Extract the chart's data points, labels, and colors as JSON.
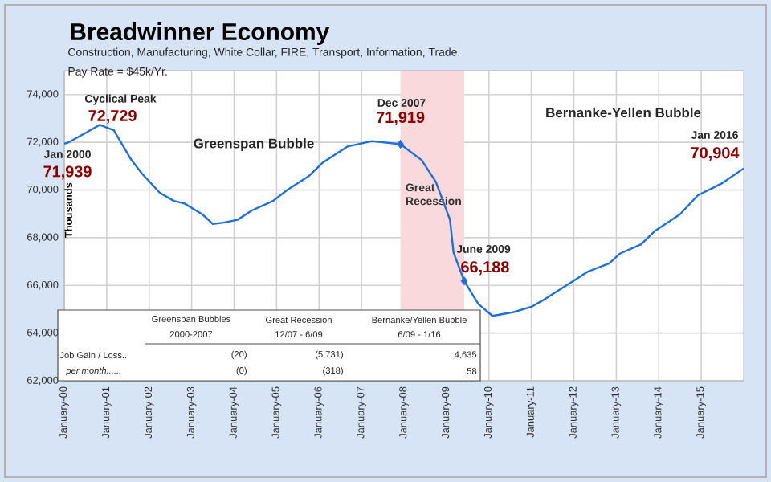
{
  "chart_data": {
    "type": "line",
    "title": "Breadwinner Economy",
    "subtitle": "Construction, Manufacturing, White Collar, FIRE, Transport, Information, Trade.",
    "ylabel": "Thousands",
    "xlim": [
      "2000-01",
      "2016-01"
    ],
    "ylim": [
      62000,
      75000
    ],
    "xticks": [
      {
        "value": "2000-01",
        "label": "January-00"
      },
      {
        "value": "2001-01",
        "label": "January-01"
      },
      {
        "value": "2002-01",
        "label": "January-02"
      },
      {
        "value": "2003-01",
        "label": "January-03"
      },
      {
        "value": "2004-01",
        "label": "January-04"
      },
      {
        "value": "2005-01",
        "label": "January-05"
      },
      {
        "value": "2006-01",
        "label": "January-06"
      },
      {
        "value": "2007-01",
        "label": "January-07"
      },
      {
        "value": "2008-01",
        "label": "January-08"
      },
      {
        "value": "2009-01",
        "label": "January-09"
      },
      {
        "value": "2010-01",
        "label": "January-10"
      },
      {
        "value": "2011-01",
        "label": "January-11"
      },
      {
        "value": "2012-01",
        "label": "January-12"
      },
      {
        "value": "2013-01",
        "label": "January-13"
      },
      {
        "value": "2014-01",
        "label": "January-14"
      },
      {
        "value": "2015-01",
        "label": "January-15"
      }
    ],
    "yticks": [
      {
        "value": 62000,
        "label": "62,000"
      },
      {
        "value": 64000,
        "label": "64,000"
      },
      {
        "value": 66000,
        "label": "66,000"
      },
      {
        "value": 68000,
        "label": "68,000"
      },
      {
        "value": 70000,
        "label": "70,000"
      },
      {
        "value": 72000,
        "label": "72,000"
      },
      {
        "value": 74000,
        "label": "74,000"
      }
    ],
    "grid": true,
    "series": [
      {
        "type": "line",
        "color": "#1f6fd6",
        "x": [
          "2000-01",
          "2000-02",
          "2000-07",
          "2000-11",
          "2001-03",
          "2001-08",
          "2001-11",
          "2002-04",
          "2002-08",
          "2002-11",
          "2003-04",
          "2003-07",
          "2003-10",
          "2004-02",
          "2004-06",
          "2004-12",
          "2005-04",
          "2005-10",
          "2006-02",
          "2006-09",
          "2007-04",
          "2007-12",
          "2008-06",
          "2008-10",
          "2009-02",
          "2009-03",
          "2009-06",
          "2009-10",
          "2010-02",
          "2010-08",
          "2011-01",
          "2011-05",
          "2011-11",
          "2012-05",
          "2012-11",
          "2013-02",
          "2013-08",
          "2013-12",
          "2014-07",
          "2014-12",
          "2015-07",
          "2016-01"
        ],
        "values": [
          71939,
          71980,
          72390,
          72729,
          72500,
          71250,
          70680,
          69880,
          69540,
          69430,
          68980,
          68570,
          68630,
          68750,
          69140,
          69540,
          70000,
          70570,
          71140,
          71820,
          72050,
          71919,
          71250,
          70340,
          68750,
          67380,
          66188,
          65220,
          64720,
          64880,
          65100,
          65440,
          66010,
          66580,
          66920,
          67330,
          67720,
          68290,
          68980,
          69770,
          70290,
          70904
        ]
      },
      {
        "type": "scatter",
        "marker": "diamond",
        "color": "#1f6fd6",
        "x": [
          "2007-12",
          "2009-06"
        ],
        "values": [
          71919,
          66188
        ]
      }
    ],
    "bands": [
      {
        "axis": "x",
        "from": "2007-12",
        "to": "2009-06",
        "label": "Great Recession",
        "color": "#f9d9dc"
      }
    ],
    "annotations": [
      {
        "text": "72,729",
        "x": "2000-11",
        "y": 72729
      },
      {
        "text": "71,939",
        "x": "2000-01",
        "y": 71939
      },
      {
        "text": "71,919",
        "x": "2007-12",
        "y": 71919
      },
      {
        "text": "66,188",
        "x": "2009-06",
        "y": 66188
      },
      {
        "text": "70,904",
        "x": "2016-01",
        "y": 70904
      },
      "Cyclical Peak",
      "Jan 2000",
      "Dec 2007",
      "June 2009",
      "Jan 2016",
      "Greenspan Bubble",
      "Bernanke-Yellen Bubble",
      "Pay Rate = $45k/Yr.",
      "Greenspan Bubbles",
      "Great Recession",
      "Bernanke/Yellen Bubble",
      "2000-2007",
      "12/07 - 6/09",
      "6/09 - 1/16",
      "Job Gain / Loss..",
      "(20)",
      "(5,731)",
      "4,635",
      "per month......",
      "(0)",
      "(318)",
      "58"
    ]
  }
}
